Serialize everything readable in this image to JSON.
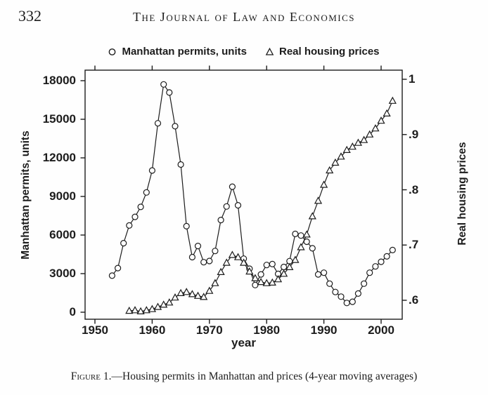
{
  "page_header": {
    "page_number": "332",
    "journal_title": "The Journal of Law and Economics"
  },
  "figure_caption": {
    "label": "Figure 1.",
    "text": "—Housing permits in Manhattan and prices (4-year moving averages)"
  },
  "chart_data": {
    "type": "line",
    "title": "",
    "xlabel": "year",
    "x_axis": {
      "ticks": [
        1950,
        1960,
        1970,
        1980,
        1990,
        2000
      ],
      "tick_labels": [
        "1950",
        "1960",
        "1970",
        "1980",
        "1990",
        "2000"
      ],
      "range": [
        1948.3,
        2003.7
      ]
    },
    "left_axis": {
      "label": "Manhattan permits, units",
      "ticks": [
        0,
        3000,
        6000,
        9000,
        12000,
        15000,
        18000
      ],
      "tick_labels": [
        "0",
        "3000",
        "6000",
        "9000",
        "12000",
        "15000",
        "18000"
      ]
    },
    "right_axis": {
      "label": "Real housing prices",
      "ticks": [
        0.6,
        0.7,
        0.8,
        0.9,
        1.0
      ],
      "tick_labels": [
        ".6",
        ".7",
        ".8",
        ".9",
        "1"
      ]
    },
    "legend": {
      "position": "top",
      "entries": [
        {
          "marker": "circle",
          "label": "Manhattan permits, units"
        },
        {
          "marker": "triangle",
          "label": "Real housing prices"
        }
      ]
    },
    "series": [
      {
        "name": "Manhattan permits, units",
        "marker": "circle",
        "axis": "left",
        "start_year": 1953,
        "values": [
          2840,
          3430,
          5370,
          6740,
          7410,
          8190,
          9310,
          11020,
          14690,
          17710,
          17080,
          14460,
          11480,
          6690,
          4280,
          5150,
          3890,
          3980,
          4760,
          7170,
          8220,
          9760,
          8310,
          4160,
          3380,
          2110,
          2940,
          3670,
          3740,
          2980,
          3520,
          3970,
          6090,
          5960,
          5480,
          4970,
          2940,
          3070,
          2220,
          1570,
          1210,
          720,
          810,
          1450,
          2220,
          3070,
          3560,
          3920,
          4340,
          4830
        ]
      },
      {
        "name": "Real housing prices",
        "marker": "triangle",
        "axis": "right",
        "start_year": 1956,
        "values": [
          0.581,
          0.582,
          0.58,
          0.582,
          0.584,
          0.588,
          0.592,
          0.596,
          0.605,
          0.613,
          0.615,
          0.611,
          0.608,
          0.606,
          0.617,
          0.631,
          0.651,
          0.668,
          0.682,
          0.678,
          0.668,
          0.652,
          0.64,
          0.633,
          0.631,
          0.632,
          0.638,
          0.648,
          0.66,
          0.673,
          0.696,
          0.719,
          0.752,
          0.78,
          0.809,
          0.835,
          0.849,
          0.86,
          0.872,
          0.878,
          0.885,
          0.89,
          0.9,
          0.911,
          0.925,
          0.938,
          0.961
        ]
      }
    ]
  }
}
